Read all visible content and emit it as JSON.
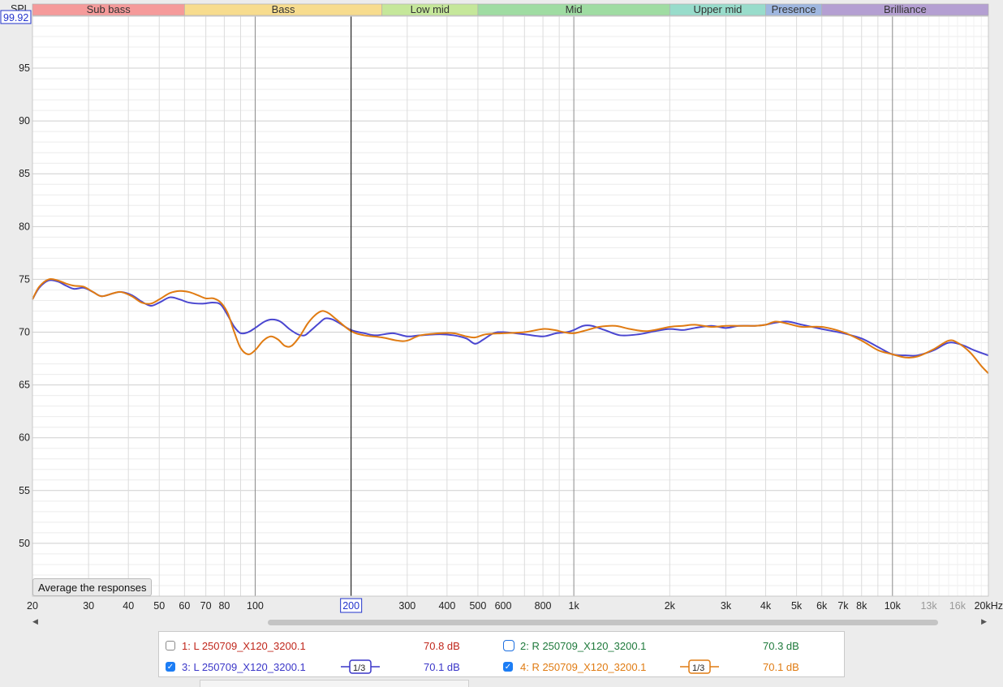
{
  "bands": [
    {
      "label": "Sub bass",
      "from": 20,
      "to": 60,
      "color": "#f59a9a"
    },
    {
      "label": "Bass",
      "from": 60,
      "to": 250,
      "color": "#f7dc8e"
    },
    {
      "label": "Low mid",
      "from": 250,
      "to": 500,
      "color": "#c5e79a"
    },
    {
      "label": "Mid",
      "from": 500,
      "to": 2000,
      "color": "#9fdca2"
    },
    {
      "label": "Upper mid",
      "from": 2000,
      "to": 4000,
      "color": "#98dccb"
    },
    {
      "label": "Presence",
      "from": 4000,
      "to": 6000,
      "color": "#9fb7e0"
    },
    {
      "label": "Brilliance",
      "from": 6000,
      "to": 20000,
      "color": "#b49fd2"
    }
  ],
  "axis": {
    "y_label": "SPL",
    "y_top_value": "99.92",
    "cursor_freq": "200"
  },
  "average_button_label": "Average the responses",
  "chart_data": {
    "type": "line",
    "x_scale": "log",
    "xlim": [
      20,
      20000
    ],
    "ylim": [
      45.5,
      99.92
    ],
    "yticks": [
      50,
      55,
      60,
      65,
      70,
      75,
      80,
      85,
      90,
      95
    ],
    "xticks": [
      {
        "v": 20,
        "label": "20"
      },
      {
        "v": 30,
        "label": "30"
      },
      {
        "v": 40,
        "label": "40"
      },
      {
        "v": 50,
        "label": "50"
      },
      {
        "v": 60,
        "label": "60"
      },
      {
        "v": 70,
        "label": "70"
      },
      {
        "v": 80,
        "label": "80"
      },
      {
        "v": 100,
        "label": "100"
      },
      {
        "v": 300,
        "label": "300"
      },
      {
        "v": 400,
        "label": "400"
      },
      {
        "v": 500,
        "label": "500"
      },
      {
        "v": 600,
        "label": "600"
      },
      {
        "v": 800,
        "label": "800"
      },
      {
        "v": 1000,
        "label": "1k"
      },
      {
        "v": 2000,
        "label": "2k"
      },
      {
        "v": 3000,
        "label": "3k"
      },
      {
        "v": 4000,
        "label": "4k"
      },
      {
        "v": 5000,
        "label": "5k"
      },
      {
        "v": 6000,
        "label": "6k"
      },
      {
        "v": 7000,
        "label": "7k"
      },
      {
        "v": 8000,
        "label": "8k"
      },
      {
        "v": 10000,
        "label": "10k"
      },
      {
        "v": 13000,
        "label": "13k",
        "light": true
      },
      {
        "v": 16000,
        "label": "16k",
        "light": true
      },
      {
        "v": 20000,
        "label": "20kHz"
      }
    ],
    "series": [
      {
        "name": "3: L 250709_X120_3200.1",
        "color": "#4a46d0",
        "points": [
          [
            20,
            73.1
          ],
          [
            21,
            74.2
          ],
          [
            22.5,
            74.9
          ],
          [
            24,
            74.8
          ],
          [
            25.5,
            74.4
          ],
          [
            27,
            74.1
          ],
          [
            29,
            74.2
          ],
          [
            31,
            73.8
          ],
          [
            33,
            73.4
          ],
          [
            36,
            73.7
          ],
          [
            38,
            73.8
          ],
          [
            41,
            73.5
          ],
          [
            44,
            72.9
          ],
          [
            47,
            72.5
          ],
          [
            50,
            72.8
          ],
          [
            54,
            73.3
          ],
          [
            58,
            73.1
          ],
          [
            62,
            72.8
          ],
          [
            68,
            72.7
          ],
          [
            74,
            72.8
          ],
          [
            78,
            72.6
          ],
          [
            82,
            71.6
          ],
          [
            86,
            70.5
          ],
          [
            90,
            69.9
          ],
          [
            95,
            70.0
          ],
          [
            100,
            70.4
          ],
          [
            107,
            71.0
          ],
          [
            113,
            71.2
          ],
          [
            120,
            71.0
          ],
          [
            128,
            70.3
          ],
          [
            136,
            69.8
          ],
          [
            143,
            69.7
          ],
          [
            150,
            70.2
          ],
          [
            158,
            70.8
          ],
          [
            166,
            71.3
          ],
          [
            175,
            71.2
          ],
          [
            185,
            70.8
          ],
          [
            200,
            70.2
          ],
          [
            220,
            69.9
          ],
          [
            240,
            69.7
          ],
          [
            270,
            69.9
          ],
          [
            300,
            69.6
          ],
          [
            330,
            69.7
          ],
          [
            380,
            69.8
          ],
          [
            420,
            69.7
          ],
          [
            460,
            69.4
          ],
          [
            490,
            68.9
          ],
          [
            520,
            69.3
          ],
          [
            560,
            69.9
          ],
          [
            600,
            70.0
          ],
          [
            700,
            69.8
          ],
          [
            800,
            69.6
          ],
          [
            880,
            69.9
          ],
          [
            950,
            70.0
          ],
          [
            1000,
            70.2
          ],
          [
            1070,
            70.6
          ],
          [
            1140,
            70.6
          ],
          [
            1250,
            70.2
          ],
          [
            1400,
            69.7
          ],
          [
            1600,
            69.8
          ],
          [
            1800,
            70.1
          ],
          [
            2000,
            70.3
          ],
          [
            2200,
            70.2
          ],
          [
            2400,
            70.4
          ],
          [
            2700,
            70.6
          ],
          [
            3000,
            70.4
          ],
          [
            3300,
            70.6
          ],
          [
            3700,
            70.6
          ],
          [
            4000,
            70.7
          ],
          [
            4300,
            70.9
          ],
          [
            4700,
            71.0
          ],
          [
            5200,
            70.7
          ],
          [
            6000,
            70.3
          ],
          [
            7000,
            69.9
          ],
          [
            8000,
            69.4
          ],
          [
            9000,
            68.6
          ],
          [
            10000,
            67.9
          ],
          [
            11000,
            67.8
          ],
          [
            12000,
            67.8
          ],
          [
            13500,
            68.3
          ],
          [
            15000,
            69.0
          ],
          [
            16500,
            68.8
          ],
          [
            18000,
            68.3
          ],
          [
            20000,
            67.8
          ]
        ]
      },
      {
        "name": "4: R 250709_X120_3200.1",
        "color": "#e07b12",
        "points": [
          [
            20,
            73.1
          ],
          [
            21,
            74.3
          ],
          [
            22.5,
            75.0
          ],
          [
            24,
            74.9
          ],
          [
            25.5,
            74.6
          ],
          [
            27,
            74.4
          ],
          [
            29,
            74.3
          ],
          [
            31,
            73.8
          ],
          [
            33,
            73.4
          ],
          [
            36,
            73.7
          ],
          [
            38,
            73.8
          ],
          [
            41,
            73.4
          ],
          [
            44,
            72.8
          ],
          [
            47,
            72.7
          ],
          [
            50,
            73.1
          ],
          [
            54,
            73.7
          ],
          [
            58,
            73.9
          ],
          [
            62,
            73.8
          ],
          [
            66,
            73.5
          ],
          [
            70,
            73.2
          ],
          [
            74,
            73.2
          ],
          [
            78,
            72.8
          ],
          [
            82,
            71.8
          ],
          [
            86,
            70.0
          ],
          [
            90,
            68.5
          ],
          [
            95,
            67.9
          ],
          [
            100,
            68.3
          ],
          [
            106,
            69.2
          ],
          [
            112,
            69.6
          ],
          [
            118,
            69.3
          ],
          [
            124,
            68.7
          ],
          [
            130,
            68.7
          ],
          [
            138,
            69.6
          ],
          [
            146,
            70.8
          ],
          [
            154,
            71.6
          ],
          [
            162,
            72.0
          ],
          [
            170,
            71.8
          ],
          [
            180,
            71.2
          ],
          [
            200,
            70.1
          ],
          [
            220,
            69.7
          ],
          [
            250,
            69.5
          ],
          [
            280,
            69.2
          ],
          [
            300,
            69.2
          ],
          [
            330,
            69.7
          ],
          [
            380,
            69.9
          ],
          [
            420,
            69.9
          ],
          [
            460,
            69.6
          ],
          [
            490,
            69.5
          ],
          [
            530,
            69.8
          ],
          [
            600,
            69.9
          ],
          [
            700,
            70.0
          ],
          [
            800,
            70.3
          ],
          [
            870,
            70.2
          ],
          [
            930,
            70.0
          ],
          [
            1000,
            69.9
          ],
          [
            1100,
            70.2
          ],
          [
            1200,
            70.5
          ],
          [
            1350,
            70.6
          ],
          [
            1500,
            70.3
          ],
          [
            1700,
            70.1
          ],
          [
            2000,
            70.5
          ],
          [
            2200,
            70.6
          ],
          [
            2400,
            70.7
          ],
          [
            2700,
            70.5
          ],
          [
            3000,
            70.6
          ],
          [
            3300,
            70.6
          ],
          [
            3700,
            70.6
          ],
          [
            4000,
            70.7
          ],
          [
            4300,
            71.0
          ],
          [
            4700,
            70.8
          ],
          [
            5200,
            70.5
          ],
          [
            6000,
            70.5
          ],
          [
            7000,
            70.0
          ],
          [
            8000,
            69.2
          ],
          [
            9000,
            68.3
          ],
          [
            10000,
            67.9
          ],
          [
            11000,
            67.6
          ],
          [
            12000,
            67.7
          ],
          [
            13500,
            68.4
          ],
          [
            15000,
            69.2
          ],
          [
            16000,
            69.0
          ],
          [
            17500,
            68.1
          ],
          [
            19000,
            66.8
          ],
          [
            20000,
            66.1
          ]
        ]
      }
    ]
  },
  "legend": [
    {
      "label": "1: L 250709_X120_3200.1",
      "value": "70.8 dB",
      "color": "#c0271c",
      "checked": false
    },
    {
      "label": "2: R 250709_X120_3200.1",
      "value": "70.3 dB",
      "color": "#1f7a3c",
      "checked": false
    },
    {
      "label": "3: L 250709_X120_3200.1",
      "value": "70.1 dB",
      "color": "#3a36c8",
      "checked": true,
      "smoothing": "1/3"
    },
    {
      "label": "4: R 250709_X120_3200.1",
      "value": "70.1 dB",
      "color": "#e07b12",
      "checked": true,
      "smoothing": "1/3"
    }
  ]
}
